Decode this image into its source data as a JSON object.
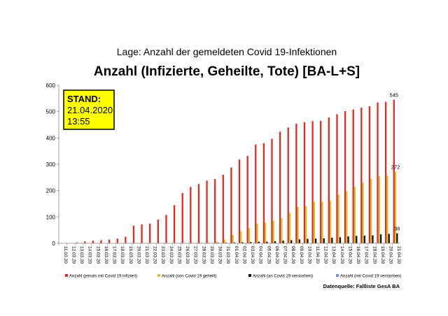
{
  "supertitle": "Lage: Anzahl der gemeldeten Covid 19-Infektionen",
  "source_note": "Datenquelle: Fallliste GesA BA",
  "stand": {
    "label": "STAND:",
    "date": "21.04.2020",
    "time": "13:55"
  },
  "colors": {
    "infiziert": "#e8261e",
    "geheilt": "#c9c72e",
    "verstorben": "#111111",
    "verstorben2": "#7d8fc4",
    "stand_box": "#ffff00"
  },
  "chart_data": {
    "type": "bar",
    "title": "Anzahl (Infizierte, Geheilte, Tote) [BA-L+S]",
    "xlabel": "",
    "ylabel": "",
    "ylim": [
      0,
      600
    ],
    "yticks": [
      0,
      100,
      200,
      300,
      400,
      500,
      600
    ],
    "grid": false,
    "legend_position": "bottom",
    "categories": [
      "11.03.20",
      "12.03.20",
      "13.03.20",
      "14.03.20",
      "15.03.20",
      "16.03.20",
      "17.03.20",
      "18.03.20",
      "19.03.20",
      "20.03.20",
      "21.03.20",
      "22.03.20",
      "23.03.20",
      "24.03.20",
      "25.03.20",
      "26.03.20",
      "27.03.20",
      "28.03.20",
      "29.03.20",
      "30.03.20",
      "31.03.20",
      "01.04.20",
      "02.04.20",
      "03.04.20",
      "04.04.20",
      "05.04.20",
      "06.04.20",
      "07.04.20",
      "08.04.20",
      "09.04.20",
      "10.04.20",
      "11.04.20",
      "12.04.20",
      "13.04.20",
      "14.04.20",
      "15.04.20",
      "16.04.20",
      "17.04.20",
      "18.04.20",
      "19.04.20",
      "20.04.20",
      "21.04.20"
    ],
    "series": [
      {
        "name": "Anzahl (jemals mit Covid 19 infiziert)",
        "values": [
          1,
          1,
          3,
          7,
          10,
          12,
          14,
          18,
          25,
          67,
          72,
          75,
          90,
          108,
          145,
          191,
          214,
          225,
          238,
          244,
          260,
          288,
          318,
          332,
          375,
          380,
          397,
          424,
          440,
          454,
          460,
          464,
          465,
          478,
          490,
          502,
          508,
          515,
          520,
          535,
          537,
          545
        ]
      },
      {
        "name": "Anzahl (von Covid 19 geheilt)",
        "values": [
          0,
          0,
          0,
          0,
          0,
          0,
          0,
          0,
          0,
          0,
          0,
          0,
          0,
          0,
          0,
          1,
          2,
          2,
          3,
          6,
          14,
          32,
          46,
          58,
          74,
          78,
          85,
          96,
          116,
          138,
          142,
          158,
          158,
          162,
          185,
          198,
          215,
          230,
          245,
          255,
          257,
          272
        ]
      },
      {
        "name": "Anzahl (an Covid 19 verstorben)",
        "values": [
          0,
          0,
          0,
          0,
          0,
          0,
          0,
          0,
          0,
          0,
          0,
          0,
          0,
          0,
          0,
          0,
          0,
          1,
          1,
          2,
          2,
          3,
          4,
          5,
          6,
          6,
          8,
          10,
          12,
          15,
          17,
          18,
          19,
          21,
          23,
          26,
          28,
          29,
          30,
          34,
          36,
          38
        ]
      },
      {
        "name": "Anzahl (mit Covid 19 verstorben)",
        "values": [
          0,
          0,
          0,
          0,
          0,
          0,
          0,
          0,
          0,
          0,
          0,
          0,
          0,
          0,
          0,
          0,
          0,
          0,
          0,
          0,
          0,
          0,
          0,
          0,
          0,
          0,
          0,
          0,
          0,
          0,
          0,
          0,
          0,
          0,
          0,
          0,
          0,
          0,
          0,
          0,
          0,
          0
        ]
      }
    ],
    "data_labels": [
      {
        "series": 0,
        "index": 41,
        "text": "545"
      },
      {
        "series": 1,
        "index": 41,
        "text": "272"
      },
      {
        "series": 2,
        "index": 41,
        "text": "38"
      }
    ]
  }
}
